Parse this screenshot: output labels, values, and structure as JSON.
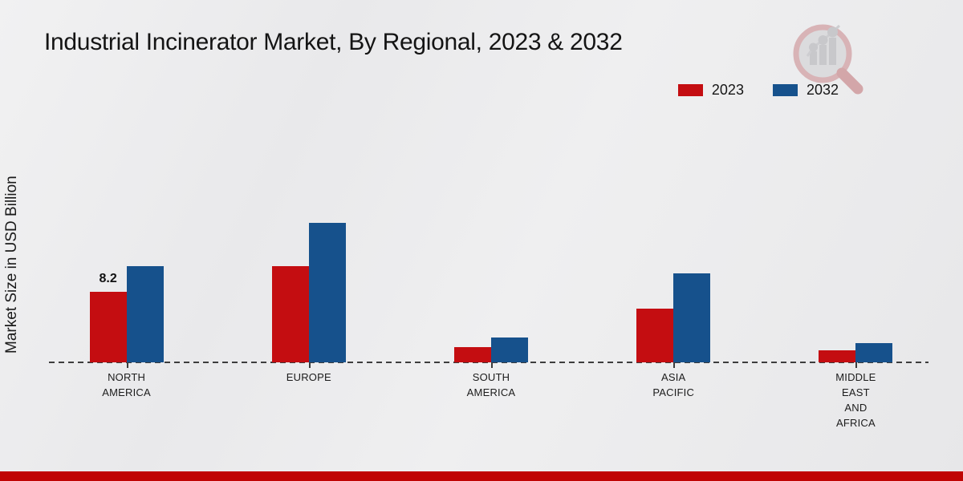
{
  "title": "Industrial Incinerator Market, By Regional, 2023 & 2032",
  "ylabel": "Market Size in USD Billion",
  "legend": {
    "items": [
      {
        "label": "2023",
        "color": "#c40d11"
      },
      {
        "label": "2032",
        "color": "#16518c"
      }
    ]
  },
  "chart_data": {
    "type": "bar",
    "title": "Industrial Incinerator Market, By Regional, 2023 & 2032",
    "ylabel": "Market Size in USD Billion",
    "unit": "USD Billion",
    "categories": [
      "NORTH AMERICA",
      "EUROPE",
      "SOUTH AMERICA",
      "ASIA PACIFIC",
      "MIDDLE EAST AND AFRICA"
    ],
    "category_lines": [
      [
        "NORTH",
        "AMERICA"
      ],
      [
        "EUROPE"
      ],
      [
        "SOUTH",
        "AMERICA"
      ],
      [
        "ASIA",
        "PACIFIC"
      ],
      [
        "MIDDLE",
        "EAST",
        "AND",
        "AFRICA"
      ]
    ],
    "series": [
      {
        "name": "2023",
        "color": "#c40d11",
        "values": [
          8.2,
          11.2,
          1.8,
          6.2,
          1.4
        ]
      },
      {
        "name": "2032",
        "color": "#16518c",
        "values": [
          11.2,
          16.2,
          2.9,
          10.3,
          2.2
        ]
      }
    ],
    "data_labels": [
      {
        "series_index": 0,
        "category_index": 0,
        "text": "8.2"
      }
    ],
    "ylim": [
      0,
      17
    ],
    "legend_position": "top-right",
    "baseline_style": "dashed",
    "grid": false
  },
  "branding": {
    "logo": "magnifier-bar-chart-logo"
  },
  "footer": {
    "bar_color": "#c00404"
  }
}
